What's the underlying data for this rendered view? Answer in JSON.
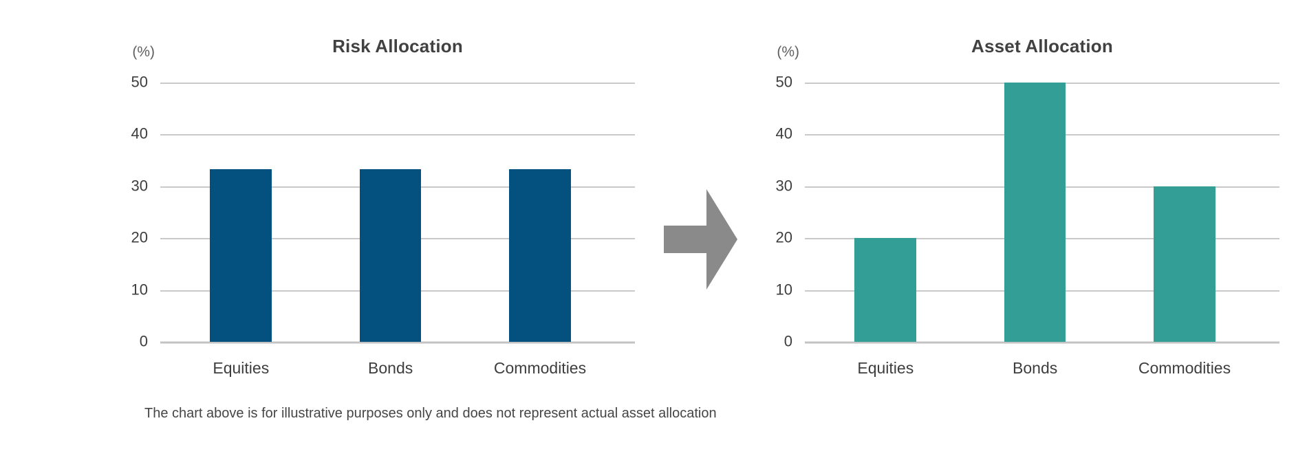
{
  "footnote": "The chart above is for illustrative purposes only and does not represent actual asset allocation",
  "arrow": {
    "icon": "right-arrow",
    "color": "#8a8a8a"
  },
  "colors": {
    "risk_bar": "#04507e",
    "asset_bar": "#339e96",
    "gridline": "#c9c9c9",
    "title_text": "#414141",
    "axis_text": "#3e3e3e"
  },
  "chart_data": [
    {
      "type": "bar",
      "title": "Risk Allocation",
      "unit_label": "(%)",
      "categories": [
        "Equities",
        "Bonds",
        "Commodities"
      ],
      "values": [
        33.3,
        33.3,
        33.3
      ],
      "xlabel": "",
      "ylabel": "(%)",
      "ylim": [
        0,
        50
      ],
      "yticks": [
        50,
        40,
        30,
        20,
        10,
        0
      ],
      "bar_color": "#04507e",
      "grid": true,
      "legend_position": "none"
    },
    {
      "type": "bar",
      "title": "Asset Allocation",
      "unit_label": "(%)",
      "categories": [
        "Equities",
        "Bonds",
        "Commodities"
      ],
      "values": [
        20,
        50,
        30
      ],
      "xlabel": "",
      "ylabel": "(%)",
      "ylim": [
        0,
        50
      ],
      "yticks": [
        50,
        40,
        30,
        20,
        10,
        0
      ],
      "bar_color": "#339e96",
      "grid": true,
      "legend_position": "none"
    }
  ]
}
